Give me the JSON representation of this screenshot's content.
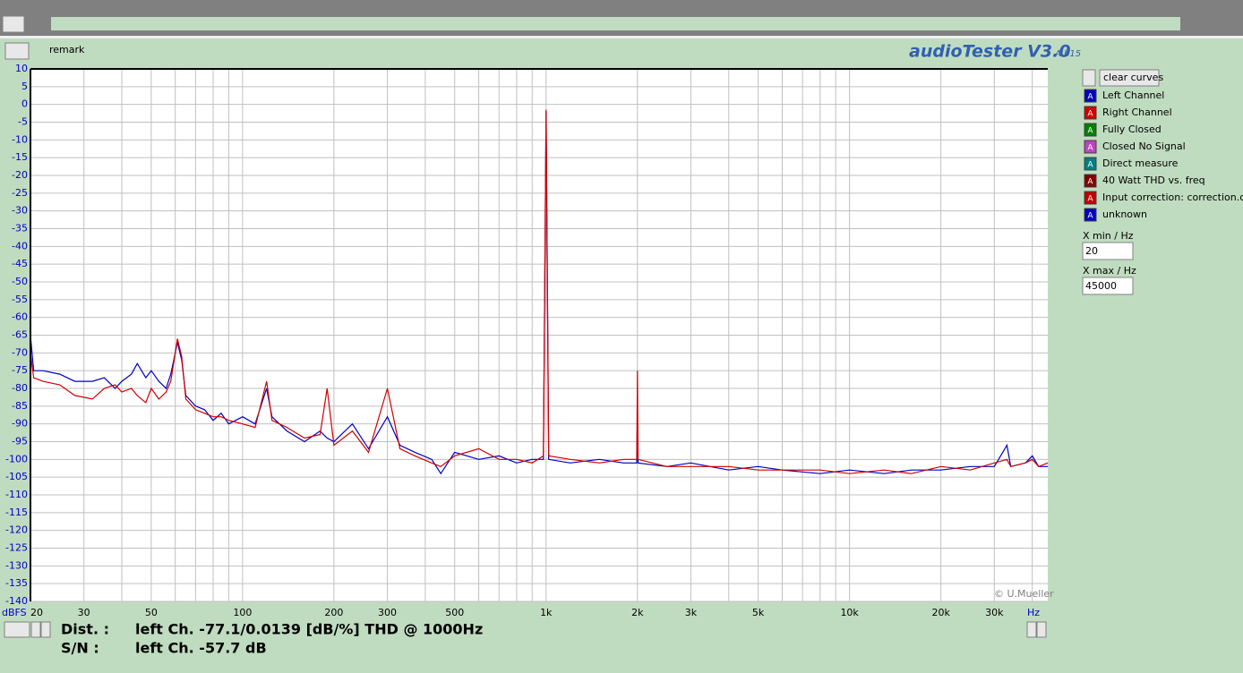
{
  "ui": {
    "remark": "remark",
    "app_title": "audioTester V3.0",
    "app_version": "A b15",
    "clear_button": "clear curves",
    "legend_icon": "A",
    "other_curves": [
      {
        "name": "Fully Closed",
        "color": "#008000"
      },
      {
        "name": "Closed No Signal",
        "color": "#c040c0"
      },
      {
        "name": "Direct measure",
        "color": "#008080"
      },
      {
        "name": "40 Watt THD vs. freq",
        "color": "#800000"
      },
      {
        "name": "Input correction: correction.cor",
        "color": "#c00000"
      },
      {
        "name": "unknown",
        "color": "#0000c0"
      }
    ],
    "xmin_label": "X min / Hz",
    "xmax_label": "X max / Hz",
    "copyright": "© U.Mueller",
    "dist_label": "Dist. :",
    "dist_value": "left Ch. -77.1/0.0139 [dB/%] THD @ 1000Hz",
    "sn_label": "S/N :",
    "sn_value": "left Ch. -57.7 dB"
  },
  "chart_data": {
    "type": "line",
    "log_x": true,
    "grid": true,
    "y_unit": "dBFS",
    "x_unit": "Hz",
    "xlim": [
      20,
      45000
    ],
    "ylim": [
      -140,
      10
    ],
    "xticks": [
      20,
      30,
      50,
      100,
      200,
      300,
      500,
      {
        "value": 1000,
        "label": "1k"
      },
      {
        "value": 2000,
        "label": "2k"
      },
      {
        "value": 3000,
        "label": "3k"
      },
      {
        "value": 5000,
        "label": "5k"
      },
      {
        "value": 10000,
        "label": "10k"
      },
      {
        "value": 20000,
        "label": "20k"
      },
      {
        "value": 30000,
        "label": "30k"
      }
    ],
    "xgrid": [
      30,
      40,
      50,
      60,
      70,
      80,
      90,
      100,
      200,
      300,
      400,
      500,
      600,
      700,
      800,
      900,
      1000,
      2000,
      3000,
      4000,
      5000,
      6000,
      7000,
      8000,
      9000,
      10000,
      20000,
      30000,
      40000
    ],
    "yticks": [
      10,
      5,
      0,
      -5,
      -10,
      -15,
      -20,
      -25,
      -30,
      -35,
      -40,
      -45,
      -50,
      -55,
      -60,
      -65,
      -70,
      -75,
      -80,
      -85,
      -90,
      -95,
      -100,
      -105,
      -110,
      -115,
      -120,
      -125,
      -130,
      -135,
      -140
    ],
    "x": [
      20,
      20.5,
      22,
      25,
      28,
      32,
      35,
      38,
      40,
      43,
      45,
      48,
      50,
      53,
      56,
      58,
      60,
      61,
      63,
      65,
      70,
      75,
      80,
      85,
      90,
      100,
      110,
      120,
      125,
      140,
      160,
      180,
      190,
      200,
      230,
      260,
      300,
      330,
      370,
      420,
      450,
      500,
      600,
      700,
      800,
      900,
      980,
      1000,
      1020,
      1200,
      1500,
      1800,
      1990,
      2000,
      2010,
      2500,
      3000,
      4000,
      5000,
      6000,
      8000,
      10000,
      13000,
      16000,
      20000,
      25000,
      30000,
      33000,
      34000,
      38000,
      40000,
      42000,
      45000
    ],
    "series": [
      {
        "name": "Left Channel",
        "color": "#0000c0",
        "values": [
          -65,
          -75,
          -75,
          -76,
          -78,
          -78,
          -77,
          -80,
          -78,
          -76,
          -73,
          -77,
          -75,
          -78,
          -80,
          -76,
          -70,
          -67,
          -72,
          -82,
          -85,
          -86,
          -89,
          -87,
          -90,
          -88,
          -90,
          -80,
          -88,
          -92,
          -95,
          -92,
          -94,
          -95,
          -90,
          -97,
          -88,
          -96,
          -98,
          -100,
          -104,
          -98,
          -100,
          -99,
          -101,
          -100,
          -100,
          -2,
          -100,
          -101,
          -100,
          -101,
          -101,
          -88,
          -101,
          -102,
          -101,
          -103,
          -102,
          -103,
          -104,
          -103,
          -104,
          -103,
          -103,
          -102,
          -102,
          -96,
          -102,
          -101,
          -99,
          -102,
          -102
        ]
      },
      {
        "name": "Right Channel",
        "color": "#d00000",
        "values": [
          -70,
          -77,
          -78,
          -79,
          -82,
          -83,
          -80,
          -79,
          -81,
          -80,
          -82,
          -84,
          -80,
          -83,
          -81,
          -78,
          -70,
          -66,
          -71,
          -83,
          -86,
          -87,
          -88,
          -88,
          -89,
          -90,
          -91,
          -78,
          -89,
          -91,
          -94,
          -93,
          -80,
          -96,
          -92,
          -98,
          -80,
          -97,
          -99,
          -101,
          -102,
          -99,
          -97,
          -100,
          -100,
          -101,
          -99,
          -1.5,
          -99,
          -100,
          -101,
          -100,
          -100,
          -75,
          -100,
          -102,
          -102,
          -102,
          -103,
          -103,
          -103,
          -104,
          -103,
          -104,
          -102,
          -103,
          -101,
          -100,
          -102,
          -101,
          -100,
          -102,
          -101
        ]
      }
    ]
  }
}
